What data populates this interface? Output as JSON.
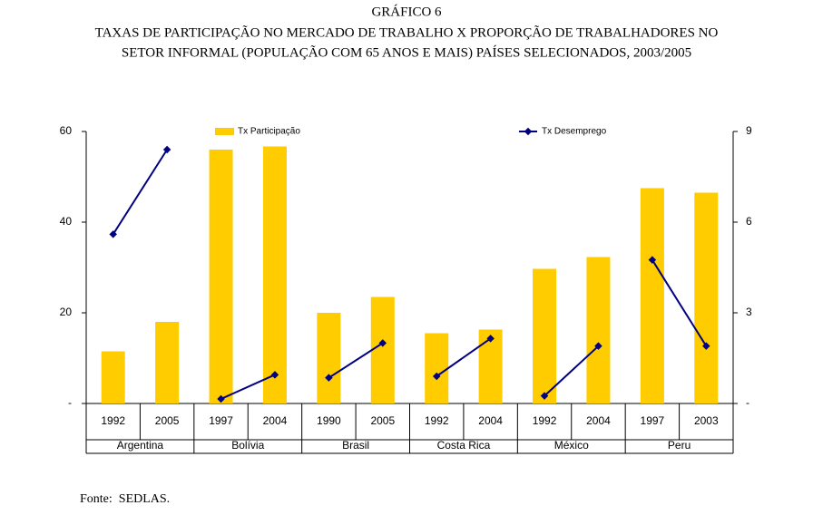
{
  "chart_data": {
    "type": "bar",
    "title": "GRÁFICO 6",
    "subtitle": [
      "TAXAS DE PARTICIPAÇÃO NO MERCADO DE TRABALHO X PROPORÇÃO DE TRABALHADORES NO",
      "SETOR INFORMAL (POPULAÇÃO COM 65 ANOS E MAIS) PAÍSES SELECIONADOS, 2003/2005"
    ],
    "categories": [
      "1992",
      "2005",
      "1997",
      "2004",
      "1990",
      "2005",
      "1992",
      "2004",
      "1992",
      "2004",
      "1997",
      "2003"
    ],
    "groups": [
      "Argentina",
      "Bolívia",
      "Brasil",
      "Costa Rica",
      "México",
      "Peru"
    ],
    "series": [
      {
        "name": "Tx Participação",
        "type": "bar",
        "color": "#FFCC00",
        "values": [
          11.5,
          18,
          56,
          56.7,
          20,
          23.5,
          15.5,
          16.3,
          29.7,
          32.3,
          47.5,
          46.5
        ]
      },
      {
        "name": "Tx Desemprego",
        "type": "line",
        "axis": "y2",
        "color": "#000080",
        "values": [
          5.6,
          8.4,
          0.15,
          0.95,
          0.85,
          2.0,
          0.9,
          2.15,
          0.25,
          1.9,
          4.75,
          1.9
        ]
      }
    ],
    "ylim": [
      0,
      60
    ],
    "yticks": [
      {
        "value": 0,
        "label": "-"
      },
      20,
      40,
      60
    ],
    "y2lim": [
      0,
      9
    ],
    "y2ticks": [
      {
        "value": 0,
        "label": "-"
      },
      3,
      6,
      9
    ],
    "source": "Fonte:  SEDLAS."
  }
}
